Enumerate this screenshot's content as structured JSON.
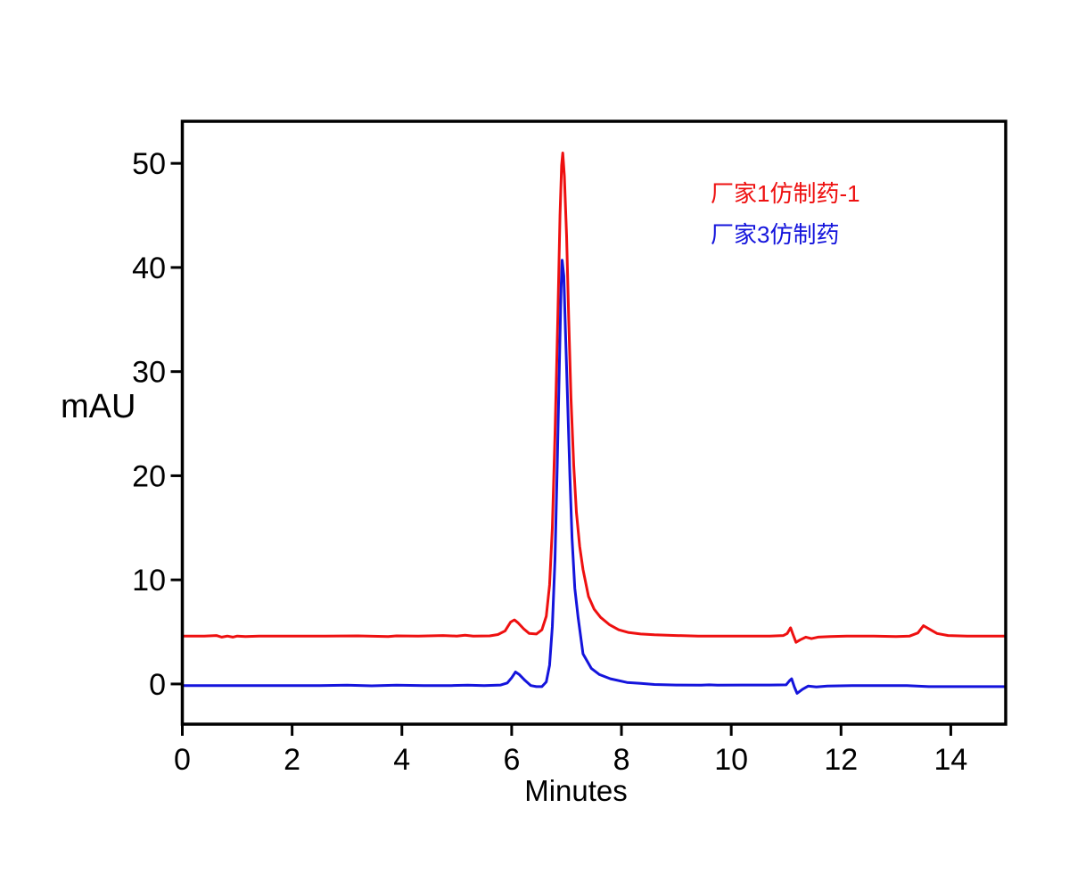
{
  "figure": {
    "background_color": "#ffffff",
    "axis_color": "#000000"
  },
  "chart_data": {
    "type": "line",
    "title": "",
    "xlabel": "Minutes",
    "ylabel": "mAU",
    "xlim": [
      0,
      15
    ],
    "ylim": [
      -3.86,
      54.04
    ],
    "x_ticks": [
      0,
      2,
      4,
      6,
      8,
      10,
      12,
      14
    ],
    "y_ticks": [
      0,
      10,
      20,
      30,
      40,
      50
    ],
    "grid": false,
    "legend_position": "upper-right-inside",
    "series": [
      {
        "name": "厂家1仿制药-1",
        "color": "#ee1010",
        "baseline_mAU": 4.6,
        "main_peak": {
          "retention_minutes": 6.93,
          "apex_mAU": 51.0
        },
        "minor_peak": {
          "retention_minutes": 6.05,
          "apex_mAU": 6.15
        },
        "points": [
          [
            0,
            4.6
          ],
          [
            0.4,
            4.6
          ],
          [
            0.62,
            4.65
          ],
          [
            0.72,
            4.5
          ],
          [
            0.82,
            4.6
          ],
          [
            0.92,
            4.5
          ],
          [
            1.0,
            4.6
          ],
          [
            1.15,
            4.55
          ],
          [
            1.4,
            4.6
          ],
          [
            2.0,
            4.6
          ],
          [
            2.6,
            4.6
          ],
          [
            3.2,
            4.62
          ],
          [
            3.75,
            4.55
          ],
          [
            3.9,
            4.62
          ],
          [
            4.3,
            4.6
          ],
          [
            4.75,
            4.65
          ],
          [
            5.0,
            4.6
          ],
          [
            5.15,
            4.68
          ],
          [
            5.3,
            4.6
          ],
          [
            5.6,
            4.62
          ],
          [
            5.75,
            4.75
          ],
          [
            5.88,
            5.1
          ],
          [
            5.98,
            5.95
          ],
          [
            6.05,
            6.15
          ],
          [
            6.12,
            5.85
          ],
          [
            6.22,
            5.3
          ],
          [
            6.32,
            4.85
          ],
          [
            6.45,
            4.8
          ],
          [
            6.55,
            5.2
          ],
          [
            6.63,
            6.5
          ],
          [
            6.69,
            9.5
          ],
          [
            6.74,
            15
          ],
          [
            6.79,
            24
          ],
          [
            6.84,
            35
          ],
          [
            6.88,
            45
          ],
          [
            6.91,
            49.8
          ],
          [
            6.93,
            51.0
          ],
          [
            6.96,
            48.8
          ],
          [
            7.0,
            43
          ],
          [
            7.04,
            35
          ],
          [
            7.08,
            27.5
          ],
          [
            7.13,
            21
          ],
          [
            7.18,
            16.5
          ],
          [
            7.24,
            13.2
          ],
          [
            7.3,
            11
          ],
          [
            7.4,
            8.4
          ],
          [
            7.5,
            7.2
          ],
          [
            7.62,
            6.4
          ],
          [
            7.78,
            5.7
          ],
          [
            7.95,
            5.2
          ],
          [
            8.12,
            4.95
          ],
          [
            8.35,
            4.8
          ],
          [
            8.6,
            4.72
          ],
          [
            9.0,
            4.65
          ],
          [
            9.4,
            4.6
          ],
          [
            9.8,
            4.6
          ],
          [
            10.3,
            4.6
          ],
          [
            10.7,
            4.6
          ],
          [
            10.95,
            4.65
          ],
          [
            11.02,
            4.85
          ],
          [
            11.08,
            5.4
          ],
          [
            11.13,
            4.7
          ],
          [
            11.18,
            4.0
          ],
          [
            11.26,
            4.25
          ],
          [
            11.36,
            4.5
          ],
          [
            11.46,
            4.35
          ],
          [
            11.58,
            4.5
          ],
          [
            11.8,
            4.55
          ],
          [
            12.1,
            4.6
          ],
          [
            12.6,
            4.6
          ],
          [
            13.0,
            4.55
          ],
          [
            13.25,
            4.6
          ],
          [
            13.4,
            4.9
          ],
          [
            13.5,
            5.6
          ],
          [
            13.6,
            5.3
          ],
          [
            13.75,
            4.85
          ],
          [
            13.95,
            4.65
          ],
          [
            14.3,
            4.6
          ],
          [
            14.7,
            4.6
          ],
          [
            15,
            4.6
          ]
        ]
      },
      {
        "name": "厂家3仿制药",
        "color": "#1414dc",
        "baseline_mAU": -0.15,
        "main_peak": {
          "retention_minutes": 6.92,
          "apex_mAU": 40.7
        },
        "minor_peak": {
          "retention_minutes": 6.07,
          "apex_mAU": 1.15
        },
        "points": [
          [
            0,
            -0.15
          ],
          [
            0.5,
            -0.15
          ],
          [
            1.0,
            -0.15
          ],
          [
            1.5,
            -0.15
          ],
          [
            2.0,
            -0.15
          ],
          [
            2.5,
            -0.15
          ],
          [
            3.0,
            -0.12
          ],
          [
            3.45,
            -0.18
          ],
          [
            3.9,
            -0.12
          ],
          [
            4.4,
            -0.15
          ],
          [
            4.9,
            -0.15
          ],
          [
            5.2,
            -0.12
          ],
          [
            5.5,
            -0.15
          ],
          [
            5.8,
            -0.1
          ],
          [
            5.92,
            0.1
          ],
          [
            6.0,
            0.6
          ],
          [
            6.07,
            1.15
          ],
          [
            6.14,
            0.9
          ],
          [
            6.24,
            0.35
          ],
          [
            6.35,
            -0.15
          ],
          [
            6.45,
            -0.25
          ],
          [
            6.55,
            -0.25
          ],
          [
            6.63,
            0.2
          ],
          [
            6.69,
            1.8
          ],
          [
            6.74,
            5.5
          ],
          [
            6.79,
            12
          ],
          [
            6.83,
            21
          ],
          [
            6.87,
            31
          ],
          [
            6.9,
            38
          ],
          [
            6.92,
            40.7
          ],
          [
            6.95,
            39.2
          ],
          [
            6.98,
            34
          ],
          [
            7.02,
            27
          ],
          [
            7.06,
            20
          ],
          [
            7.1,
            14
          ],
          [
            7.15,
            9.2
          ],
          [
            7.21,
            6.4
          ],
          [
            7.3,
            2.9
          ],
          [
            7.45,
            1.5
          ],
          [
            7.6,
            0.9
          ],
          [
            7.8,
            0.5
          ],
          [
            8.1,
            0.15
          ],
          [
            8.35,
            0.05
          ],
          [
            8.6,
            -0.05
          ],
          [
            9.0,
            -0.1
          ],
          [
            9.45,
            -0.12
          ],
          [
            9.6,
            -0.08
          ],
          [
            9.75,
            -0.12
          ],
          [
            10.2,
            -0.1
          ],
          [
            10.7,
            -0.1
          ],
          [
            11.0,
            -0.08
          ],
          [
            11.06,
            0.3
          ],
          [
            11.1,
            0.5
          ],
          [
            11.15,
            -0.3
          ],
          [
            11.2,
            -0.9
          ],
          [
            11.3,
            -0.5
          ],
          [
            11.4,
            -0.2
          ],
          [
            11.55,
            -0.28
          ],
          [
            11.75,
            -0.2
          ],
          [
            12.2,
            -0.15
          ],
          [
            12.7,
            -0.15
          ],
          [
            13.2,
            -0.15
          ],
          [
            13.6,
            -0.25
          ],
          [
            14.1,
            -0.25
          ],
          [
            14.6,
            -0.25
          ],
          [
            15,
            -0.25
          ]
        ]
      }
    ]
  }
}
